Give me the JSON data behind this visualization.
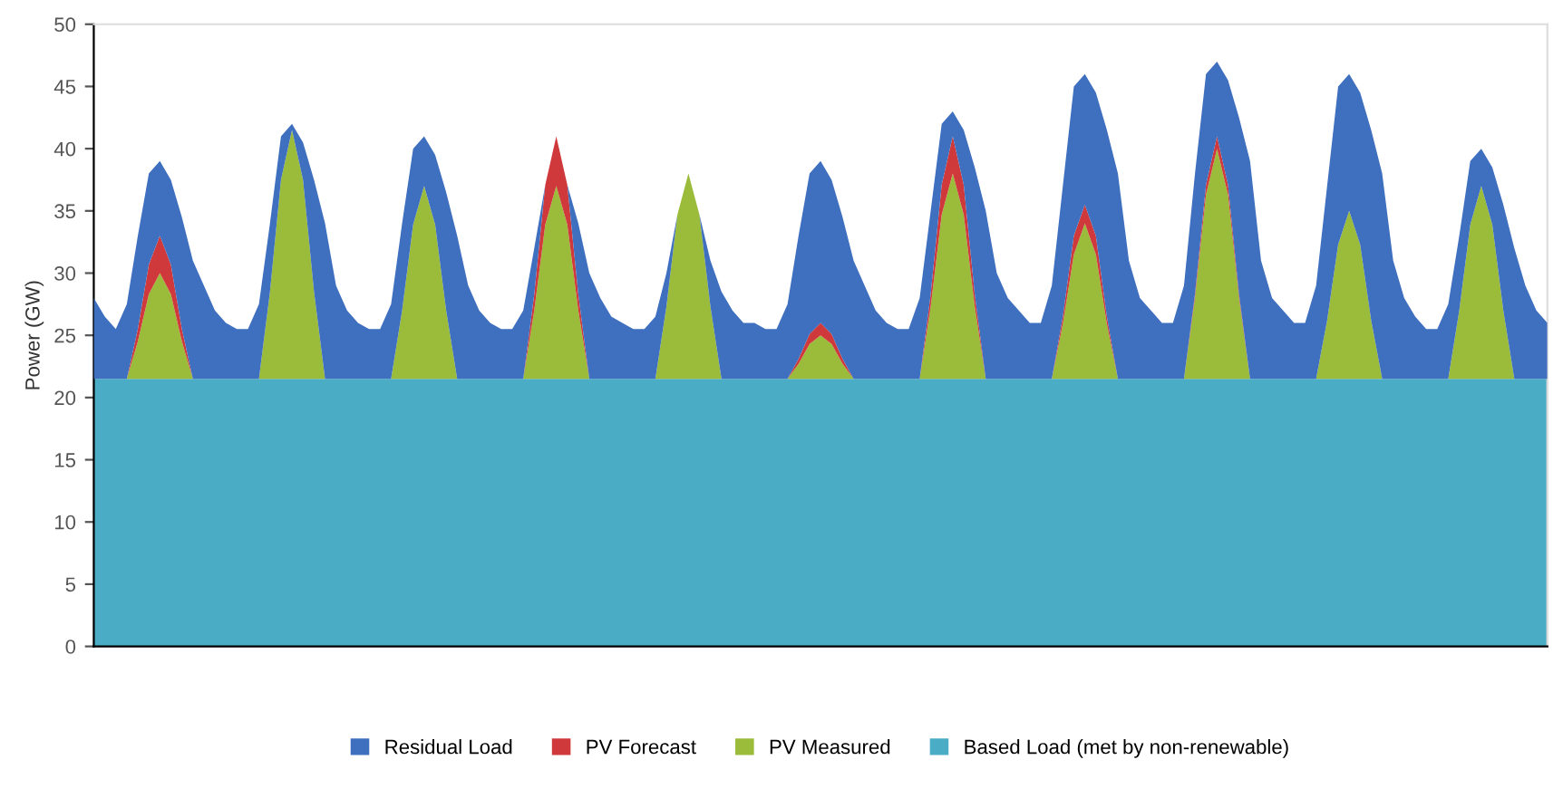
{
  "chart_data": {
    "type": "area",
    "stacked": true,
    "ylabel": "Power (GW)",
    "ylim": [
      0,
      50
    ],
    "yticks": [
      0,
      5,
      10,
      15,
      20,
      25,
      30,
      35,
      40,
      45,
      50
    ],
    "categories": [
      null,
      null,
      null,
      null,
      null,
      null,
      null,
      null,
      null,
      null,
      null,
      null,
      null,
      null,
      null,
      null,
      null,
      null,
      null,
      null,
      null,
      null,
      null,
      null,
      null,
      null,
      null,
      null,
      null,
      null,
      null,
      null,
      null,
      null,
      null,
      null,
      null,
      null,
      null,
      null,
      null,
      null,
      null,
      null,
      null,
      null,
      null,
      null,
      null,
      null,
      null,
      null,
      null,
      null,
      null,
      null,
      null,
      null,
      null,
      null,
      null,
      null,
      null,
      null,
      null,
      null,
      null,
      null,
      null,
      null,
      null,
      null,
      null,
      null,
      null,
      null,
      null,
      null,
      null,
      null,
      null,
      null,
      null,
      null,
      null,
      null,
      null,
      null,
      null,
      null,
      null,
      null,
      null,
      null,
      null,
      null,
      null,
      null,
      null,
      null,
      null,
      null,
      null,
      null,
      null,
      null,
      null,
      null,
      null,
      null,
      null,
      null,
      null,
      null,
      null,
      null,
      null,
      null,
      null,
      null,
      null,
      null,
      null,
      null,
      null,
      null,
      null,
      null,
      null,
      null,
      null,
      null,
      null
    ],
    "legend": "bottom",
    "grid": false,
    "series": [
      {
        "name": "Based Load (met by non-renewable)",
        "color": "#4bacc6",
        "values": [
          21.5,
          21.5,
          21.5,
          21.5,
          21.5,
          21.5,
          21.5,
          21.5,
          21.5,
          21.5,
          21.5,
          21.5,
          21.5,
          21.5,
          21.5,
          21.5,
          21.5,
          21.5,
          21.5,
          21.5,
          21.5,
          21.5,
          21.5,
          21.5,
          21.5,
          21.5,
          21.5,
          21.5,
          21.5,
          21.5,
          21.5,
          21.5,
          21.5,
          21.5,
          21.5,
          21.5,
          21.5,
          21.5,
          21.5,
          21.5,
          21.5,
          21.5,
          21.5,
          21.5,
          21.5,
          21.5,
          21.5,
          21.5,
          21.5,
          21.5,
          21.5,
          21.5,
          21.5,
          21.5,
          21.5,
          21.5,
          21.5,
          21.5,
          21.5,
          21.5,
          21.5,
          21.5,
          21.5,
          21.5,
          21.5,
          21.5,
          21.5,
          21.5,
          21.5,
          21.5,
          21.5,
          21.5,
          21.5,
          21.5,
          21.5,
          21.5,
          21.5,
          21.5,
          21.5,
          21.5,
          21.5,
          21.5,
          21.5,
          21.5,
          21.5,
          21.5,
          21.5,
          21.5,
          21.5,
          21.5,
          21.5,
          21.5,
          21.5,
          21.5,
          21.5,
          21.5,
          21.5,
          21.5,
          21.5,
          21.5,
          21.5,
          21.5,
          21.5,
          21.5,
          21.5,
          21.5,
          21.5,
          21.5,
          21.5,
          21.5,
          21.5,
          21.5,
          21.5,
          21.5,
          21.5,
          21.5,
          21.5,
          21.5,
          21.5,
          21.5,
          21.5,
          21.5,
          21.5,
          21.5,
          21.5,
          21.5,
          21.5,
          21.5,
          21.5,
          21.5,
          21.5,
          21.5,
          21.5
        ]
      },
      {
        "name": "PV Measured",
        "color": "#9bbb3b",
        "values": [
          0,
          0,
          0,
          0,
          3,
          6.8,
          8.5,
          6.8,
          3,
          0,
          0,
          0,
          0,
          0,
          0,
          0,
          7,
          16,
          20,
          16,
          7,
          0,
          0,
          0,
          0,
          0,
          0,
          0,
          5.5,
          12.4,
          15.5,
          12.4,
          5.5,
          0,
          0,
          0,
          0,
          0,
          0,
          0,
          5.5,
          12.4,
          15.5,
          12.4,
          5.5,
          0,
          0,
          0,
          0,
          0,
          0,
          0,
          5.8,
          13.2,
          16.5,
          13.2,
          5.8,
          0,
          0,
          0,
          0,
          0,
          0,
          0,
          1.2,
          2.8,
          3.5,
          2.8,
          1.2,
          0,
          0,
          0,
          0,
          0,
          0,
          0,
          5.8,
          13.2,
          16.5,
          13.2,
          5.8,
          0,
          0,
          0,
          0,
          0,
          0,
          0,
          4.4,
          10,
          12.5,
          10,
          4.4,
          0,
          0,
          0,
          0,
          0,
          0,
          0,
          6.5,
          14.8,
          18.5,
          14.8,
          6.5,
          0,
          0,
          0,
          0,
          0,
          0,
          0,
          4.7,
          10.8,
          13.5,
          10.8,
          4.7,
          0,
          0,
          0,
          0,
          0,
          0,
          0,
          5.5,
          12.4,
          15.5,
          12.4,
          5.5,
          0,
          0,
          0,
          0
        ]
      },
      {
        "name": "PV Forecast",
        "color": "#d0393b",
        "values": [
          null,
          null,
          null,
          0,
          1,
          2.4,
          3,
          2.4,
          1,
          0,
          null,
          null,
          null,
          null,
          null,
          null,
          null,
          null,
          null,
          null,
          null,
          null,
          null,
          null,
          null,
          null,
          null,
          null,
          null,
          null,
          null,
          null,
          null,
          null,
          null,
          null,
          null,
          null,
          null,
          0,
          1.3,
          3.2,
          4,
          3.2,
          1.3,
          0,
          null,
          null,
          null,
          null,
          null,
          null,
          null,
          null,
          null,
          null,
          null,
          null,
          null,
          null,
          null,
          null,
          null,
          0,
          0.4,
          0.8,
          1,
          0.8,
          0.4,
          0,
          null,
          null,
          null,
          null,
          null,
          0,
          1,
          2.4,
          3,
          2.4,
          1,
          0,
          null,
          null,
          null,
          null,
          null,
          0,
          0.6,
          1.5,
          1.5,
          1.5,
          0.6,
          0,
          null,
          null,
          null,
          null,
          null,
          0,
          0.3,
          0.8,
          1,
          0.8,
          0.3,
          0,
          null,
          null,
          null,
          null,
          null,
          null,
          null,
          null,
          null,
          null,
          null,
          null,
          null,
          null,
          null,
          null,
          null,
          null,
          null,
          null,
          null,
          null,
          null,
          null,
          null,
          null,
          null
        ]
      },
      {
        "name": "Residual Load",
        "color": "#3f6fbf",
        "values": [
          6.5,
          5,
          4,
          6,
          7.5,
          7.3,
          6,
          6.8,
          9,
          9.5,
          7.5,
          5.5,
          4.5,
          4,
          4,
          6,
          5.5,
          3.5,
          0.5,
          3,
          9,
          12.5,
          7.5,
          5.5,
          4.5,
          4,
          4,
          6,
          7,
          6.1,
          4,
          5.6,
          9.5,
          11.5,
          7.5,
          5.5,
          4.5,
          4,
          4,
          5.5,
          3.7,
          0,
          0,
          0,
          5.7,
          8.5,
          6.5,
          5,
          4.5,
          4,
          4,
          5,
          2.7,
          0,
          0,
          0,
          3.7,
          7,
          5.5,
          4.5,
          4.5,
          4,
          4,
          6,
          9.9,
          12.9,
          13,
          12.4,
          11.4,
          9.5,
          7.5,
          5.5,
          4.5,
          4,
          4,
          6.5,
          6.7,
          4.9,
          2,
          4.4,
          10.2,
          13.5,
          8.5,
          6.5,
          5.5,
          4.5,
          4.5,
          7.5,
          10.5,
          12,
          10.5,
          11.5,
          15,
          16.5,
          9.5,
          6.5,
          5.5,
          4.5,
          4.5,
          7.5,
          9.7,
          8.9,
          6,
          8.4,
          14.2,
          17.5,
          9.5,
          6.5,
          5.5,
          4.5,
          4.5,
          7.5,
          10.8,
          12.7,
          11,
          12.2,
          15.3,
          16.5,
          9.5,
          6.5,
          5,
          4,
          4,
          6,
          6,
          5.1,
          3,
          4.6,
          8.5,
          10.5,
          7.5,
          5.5,
          4.5
        ]
      }
    ]
  }
}
